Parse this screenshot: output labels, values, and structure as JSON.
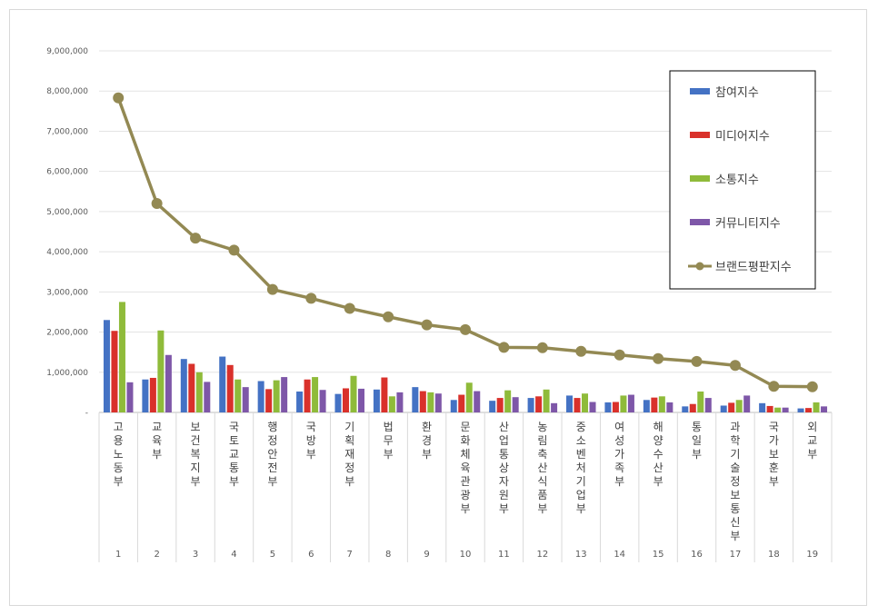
{
  "chart_data": {
    "type": "bar",
    "title": "",
    "xlabel": "",
    "ylabel": "",
    "ylim": [
      0,
      9000000
    ],
    "yticks": [
      0,
      1000000,
      2000000,
      3000000,
      4000000,
      5000000,
      6000000,
      7000000,
      8000000,
      9000000
    ],
    "ytick_labels": [
      "-",
      "1,000,000",
      "2,000,000",
      "3,000,000",
      "4,000,000",
      "5,000,000",
      "6,000,000",
      "7,000,000",
      "8,000,000",
      "9,000,000"
    ],
    "grid": true,
    "legend_position": "top-right",
    "categories": [
      "고용노동부",
      "교육부",
      "보건복지부",
      "국토교통부",
      "행정안전부",
      "국방부",
      "기획재정부",
      "법무부",
      "환경부",
      "문화체육관광부",
      "산업통상자원부",
      "농림축산식품부",
      "중소벤처기업부",
      "여성가족부",
      "해양수산부",
      "통일부",
      "과학기술정보통신부",
      "국가보훈부",
      "외교부"
    ],
    "ranks": [
      "1",
      "2",
      "3",
      "4",
      "5",
      "6",
      "7",
      "8",
      "9",
      "10",
      "11",
      "12",
      "13",
      "14",
      "15",
      "16",
      "17",
      "18",
      "19"
    ],
    "series": [
      {
        "name": "참여지수",
        "type": "bar",
        "color": "#4472c4",
        "values": [
          2300000,
          820000,
          1330000,
          1390000,
          780000,
          520000,
          460000,
          570000,
          630000,
          310000,
          290000,
          360000,
          420000,
          250000,
          310000,
          150000,
          170000,
          230000,
          100000
        ]
      },
      {
        "name": "미디어지수",
        "type": "bar",
        "color": "#d9312b",
        "values": [
          2030000,
          860000,
          1210000,
          1180000,
          580000,
          820000,
          600000,
          870000,
          530000,
          440000,
          360000,
          400000,
          360000,
          260000,
          370000,
          210000,
          240000,
          160000,
          110000
        ]
      },
      {
        "name": "소통지수",
        "type": "bar",
        "color": "#8fbb3a",
        "values": [
          2750000,
          2040000,
          1000000,
          820000,
          800000,
          880000,
          910000,
          400000,
          500000,
          740000,
          550000,
          570000,
          470000,
          420000,
          400000,
          520000,
          310000,
          120000,
          250000
        ]
      },
      {
        "name": "커뮤니티지수",
        "type": "bar",
        "color": "#7e57a8",
        "values": [
          750000,
          1430000,
          760000,
          630000,
          880000,
          560000,
          590000,
          500000,
          470000,
          530000,
          380000,
          230000,
          260000,
          440000,
          250000,
          360000,
          420000,
          120000,
          150000
        ]
      },
      {
        "name": "브랜드평판지수",
        "type": "line",
        "color": "#938953",
        "values": [
          7830000,
          5200000,
          4340000,
          4040000,
          3060000,
          2840000,
          2590000,
          2380000,
          2180000,
          2060000,
          1620000,
          1610000,
          1520000,
          1430000,
          1340000,
          1270000,
          1170000,
          650000,
          640000
        ]
      }
    ]
  }
}
